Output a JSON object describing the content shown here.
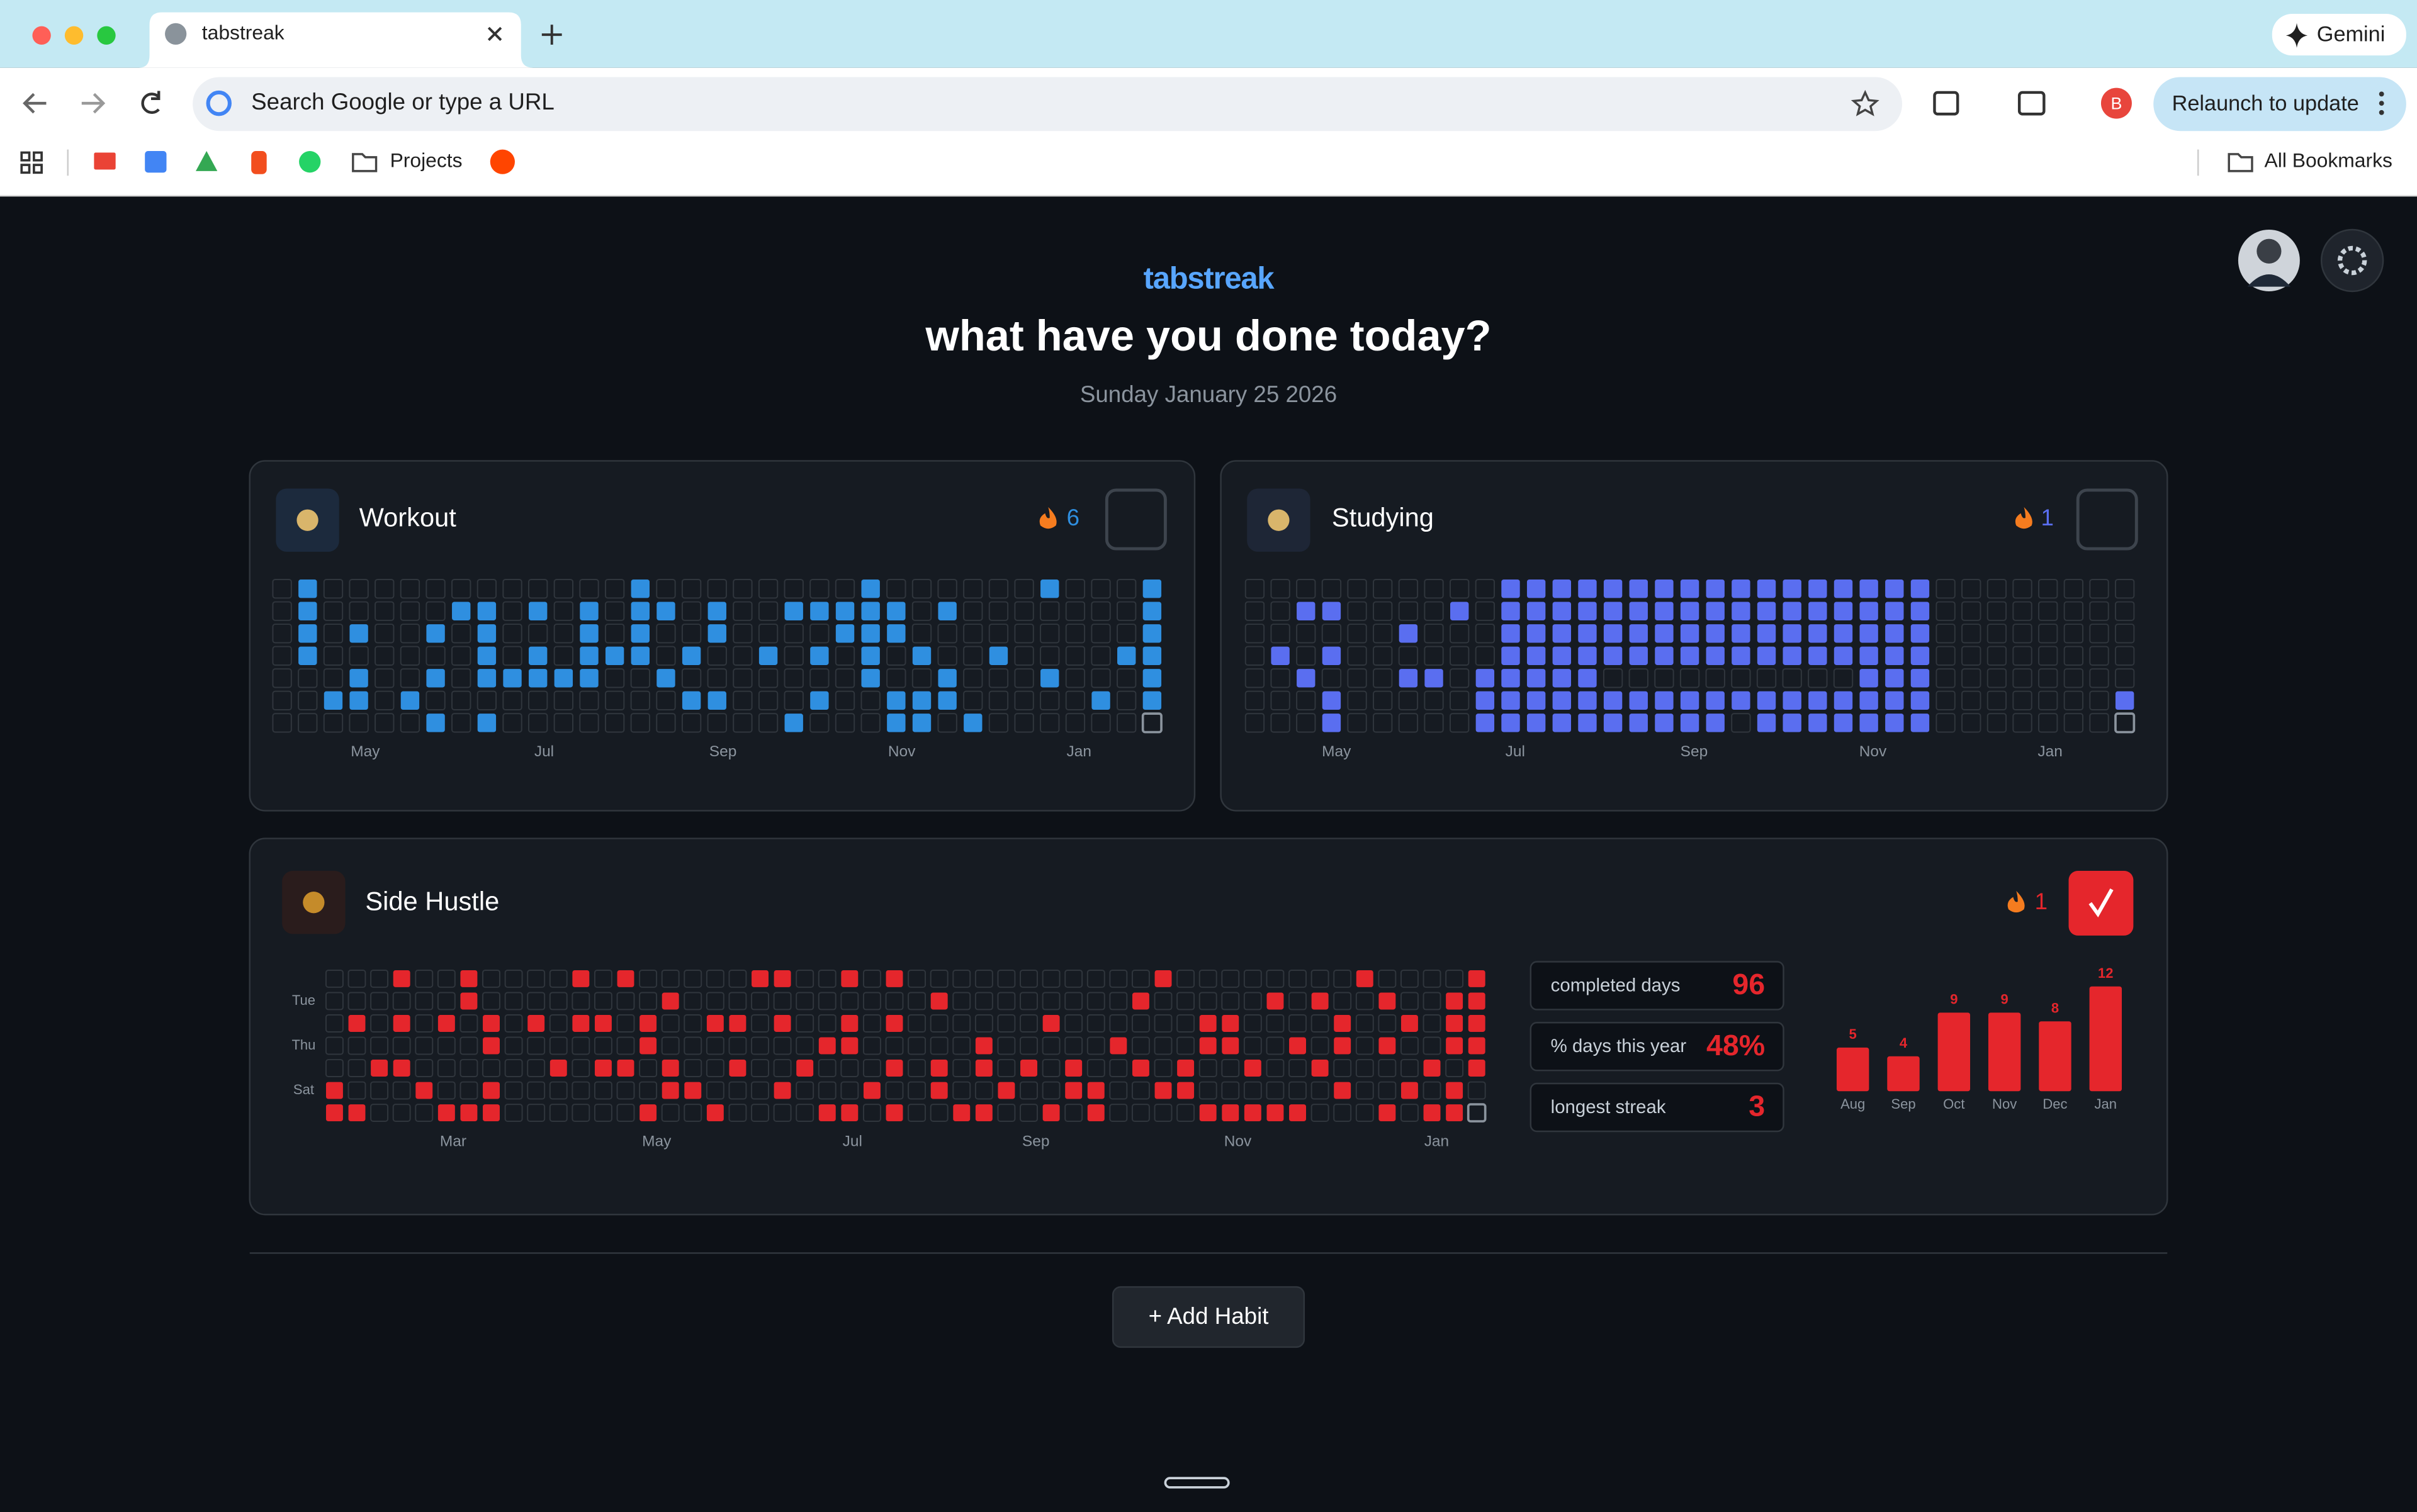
{
  "browser": {
    "tab_title": "tabstreak",
    "gemini": "Gemini",
    "omnibox": "Search Google or type a URL",
    "profile": "B",
    "relaunch": "Relaunch to update",
    "bookmarks": [
      "Projects"
    ],
    "all_bookmarks": "All Bookmarks"
  },
  "app": {
    "brand": "tabstreak",
    "heading": "what have you done today?",
    "date": "Sunday January 25 2026",
    "add_button": "+ Add Habit"
  },
  "habits": [
    {
      "name": "Workout",
      "streak": 6,
      "color": "#2f8fe0",
      "checked": false,
      "months": [
        "May",
        "Jul",
        "Sep",
        "Nov",
        "Jan"
      ],
      "grid": [
        [
          0,
          1,
          0,
          0,
          0,
          0,
          0,
          0,
          0,
          0,
          0,
          0,
          0,
          0,
          1,
          0,
          0,
          0,
          0,
          0,
          0,
          0,
          0,
          1,
          0,
          0,
          0,
          0,
          0,
          0,
          1,
          0,
          0,
          0,
          1
        ],
        [
          0,
          1,
          0,
          0,
          0,
          0,
          0,
          1,
          1,
          0,
          1,
          0,
          1,
          0,
          1,
          1,
          0,
          1,
          0,
          0,
          1,
          1,
          1,
          1,
          1,
          0,
          1,
          0,
          0,
          0,
          0,
          0,
          0,
          0,
          1
        ],
        [
          0,
          1,
          0,
          1,
          0,
          0,
          1,
          0,
          1,
          0,
          0,
          0,
          1,
          0,
          1,
          0,
          0,
          1,
          0,
          0,
          0,
          0,
          1,
          1,
          1,
          0,
          0,
          0,
          0,
          0,
          0,
          0,
          0,
          0,
          1
        ],
        [
          0,
          1,
          0,
          0,
          0,
          0,
          0,
          0,
          1,
          0,
          1,
          0,
          1,
          1,
          1,
          0,
          1,
          0,
          0,
          1,
          0,
          1,
          0,
          1,
          0,
          1,
          0,
          0,
          1,
          0,
          0,
          0,
          0,
          1,
          1
        ],
        [
          0,
          0,
          0,
          1,
          0,
          0,
          1,
          0,
          1,
          1,
          1,
          1,
          1,
          0,
          0,
          1,
          0,
          0,
          0,
          0,
          0,
          0,
          0,
          1,
          0,
          0,
          1,
          0,
          0,
          0,
          1,
          0,
          0,
          0,
          1
        ],
        [
          0,
          0,
          1,
          1,
          0,
          1,
          0,
          0,
          0,
          0,
          0,
          0,
          0,
          0,
          0,
          0,
          1,
          1,
          0,
          0,
          0,
          1,
          0,
          0,
          1,
          1,
          1,
          0,
          0,
          0,
          0,
          0,
          1,
          0,
          1
        ],
        [
          0,
          0,
          0,
          0,
          0,
          0,
          1,
          0,
          1,
          0,
          0,
          0,
          0,
          0,
          0,
          0,
          0,
          0,
          0,
          0,
          1,
          0,
          0,
          0,
          1,
          1,
          0,
          1,
          0,
          0,
          0,
          0,
          0,
          0,
          0
        ]
      ]
    },
    {
      "name": "Studying",
      "streak": 1,
      "color": "#5a6ef0",
      "checked": false,
      "months": [
        "May",
        "Jul",
        "Sep",
        "Nov",
        "Jan"
      ],
      "grid": [
        [
          0,
          0,
          0,
          0,
          0,
          0,
          0,
          0,
          0,
          0,
          1,
          1,
          1,
          1,
          1,
          1,
          1,
          1,
          1,
          1,
          1,
          1,
          1,
          1,
          1,
          1,
          1,
          0,
          0,
          0,
          0,
          0,
          0,
          0,
          0
        ],
        [
          0,
          0,
          1,
          1,
          0,
          0,
          0,
          0,
          1,
          0,
          1,
          1,
          1,
          1,
          1,
          1,
          1,
          1,
          1,
          1,
          1,
          1,
          1,
          1,
          1,
          1,
          1,
          0,
          0,
          0,
          0,
          0,
          0,
          0,
          0
        ],
        [
          0,
          0,
          0,
          0,
          0,
          0,
          1,
          0,
          0,
          0,
          1,
          1,
          1,
          1,
          1,
          1,
          1,
          1,
          1,
          1,
          1,
          1,
          1,
          1,
          1,
          1,
          1,
          0,
          0,
          0,
          0,
          0,
          0,
          0,
          0
        ],
        [
          0,
          1,
          0,
          1,
          0,
          0,
          0,
          0,
          0,
          0,
          1,
          1,
          1,
          1,
          1,
          1,
          1,
          1,
          1,
          1,
          1,
          1,
          1,
          1,
          1,
          1,
          1,
          0,
          0,
          0,
          0,
          0,
          0,
          0,
          0
        ],
        [
          0,
          0,
          1,
          0,
          0,
          0,
          1,
          1,
          0,
          1,
          1,
          1,
          1,
          1,
          0,
          0,
          0,
          0,
          0,
          0,
          0,
          0,
          0,
          0,
          1,
          1,
          1,
          0,
          0,
          0,
          0,
          0,
          0,
          0,
          0
        ],
        [
          0,
          0,
          0,
          1,
          0,
          0,
          0,
          0,
          0,
          1,
          1,
          1,
          1,
          1,
          1,
          1,
          1,
          1,
          1,
          1,
          1,
          1,
          1,
          1,
          1,
          1,
          1,
          0,
          0,
          0,
          0,
          0,
          0,
          0,
          1
        ],
        [
          0,
          0,
          0,
          1,
          0,
          0,
          0,
          0,
          0,
          1,
          1,
          1,
          1,
          1,
          1,
          1,
          1,
          1,
          1,
          0,
          1,
          1,
          1,
          1,
          1,
          1,
          1,
          0,
          0,
          0,
          0,
          0,
          0,
          0,
          0
        ]
      ]
    },
    {
      "name": "Side Hustle",
      "streak": 1,
      "color": "#e5262c",
      "checked": true,
      "months": [
        "Mar",
        "May",
        "Jul",
        "Sep",
        "Nov",
        "Jan"
      ],
      "weekdays": [
        "Tue",
        "Thu",
        "Sat"
      ],
      "grid": [
        [
          0,
          0,
          0,
          1,
          0,
          0,
          1,
          0,
          0,
          0,
          0,
          1,
          0,
          1,
          0,
          0,
          0,
          0,
          0,
          1,
          1,
          0,
          0,
          1,
          0,
          1,
          0,
          0,
          0,
          0,
          0,
          0,
          0,
          0,
          0,
          0,
          0,
          1,
          0,
          0,
          0,
          0,
          0,
          0,
          0,
          0,
          1,
          0,
          0,
          0,
          0,
          1
        ],
        [
          0,
          0,
          0,
          0,
          0,
          0,
          1,
          0,
          0,
          0,
          0,
          0,
          0,
          0,
          0,
          1,
          0,
          0,
          0,
          0,
          0,
          0,
          0,
          0,
          0,
          0,
          0,
          1,
          0,
          0,
          0,
          0,
          0,
          0,
          0,
          0,
          1,
          0,
          0,
          0,
          0,
          0,
          1,
          0,
          1,
          0,
          0,
          1,
          0,
          0,
          1,
          1
        ],
        [
          0,
          1,
          0,
          1,
          0,
          1,
          0,
          1,
          0,
          1,
          0,
          1,
          1,
          0,
          1,
          0,
          0,
          1,
          1,
          0,
          1,
          0,
          0,
          1,
          0,
          1,
          0,
          0,
          0,
          0,
          0,
          0,
          1,
          0,
          0,
          0,
          0,
          0,
          0,
          1,
          1,
          0,
          0,
          0,
          0,
          1,
          0,
          0,
          1,
          0,
          1,
          1
        ],
        [
          0,
          0,
          0,
          0,
          0,
          0,
          0,
          1,
          0,
          0,
          0,
          0,
          0,
          0,
          1,
          0,
          0,
          0,
          0,
          0,
          0,
          0,
          1,
          1,
          0,
          0,
          0,
          0,
          0,
          1,
          0,
          0,
          0,
          0,
          0,
          1,
          0,
          0,
          0,
          1,
          1,
          0,
          0,
          1,
          0,
          1,
          0,
          1,
          0,
          0,
          1,
          1
        ],
        [
          0,
          0,
          1,
          1,
          0,
          0,
          0,
          0,
          0,
          0,
          1,
          0,
          1,
          1,
          0,
          1,
          0,
          0,
          1,
          0,
          0,
          1,
          0,
          0,
          0,
          1,
          0,
          1,
          0,
          1,
          0,
          1,
          0,
          1,
          0,
          0,
          1,
          0,
          1,
          0,
          0,
          1,
          0,
          0,
          1,
          0,
          0,
          0,
          0,
          1,
          0,
          1
        ],
        [
          1,
          0,
          0,
          0,
          1,
          0,
          0,
          1,
          0,
          0,
          0,
          0,
          0,
          0,
          0,
          1,
          1,
          0,
          0,
          0,
          1,
          0,
          0,
          0,
          1,
          0,
          0,
          1,
          0,
          0,
          1,
          0,
          0,
          1,
          1,
          0,
          0,
          1,
          1,
          0,
          0,
          0,
          0,
          0,
          0,
          1,
          0,
          0,
          1,
          0,
          1,
          0
        ],
        [
          1,
          1,
          0,
          0,
          0,
          1,
          1,
          1,
          0,
          0,
          0,
          0,
          0,
          0,
          1,
          0,
          0,
          1,
          0,
          0,
          0,
          0,
          1,
          1,
          0,
          1,
          0,
          0,
          1,
          1,
          0,
          0,
          1,
          0,
          1,
          0,
          0,
          0,
          0,
          1,
          1,
          1,
          1,
          1,
          0,
          0,
          0,
          1,
          0,
          1,
          1,
          0
        ]
      ],
      "stats": [
        {
          "label": "completed days",
          "value": 96
        },
        {
          "label": "% days this year",
          "value": 48,
          "value_label": "48%"
        },
        {
          "label": "longest streak",
          "value": 3
        }
      ],
      "monthly": {
        "categories": [
          "Aug",
          "Sep",
          "Oct",
          "Nov",
          "Dec",
          "Jan"
        ],
        "values": [
          5,
          4,
          9,
          9,
          8,
          12
        ]
      }
    }
  ]
}
